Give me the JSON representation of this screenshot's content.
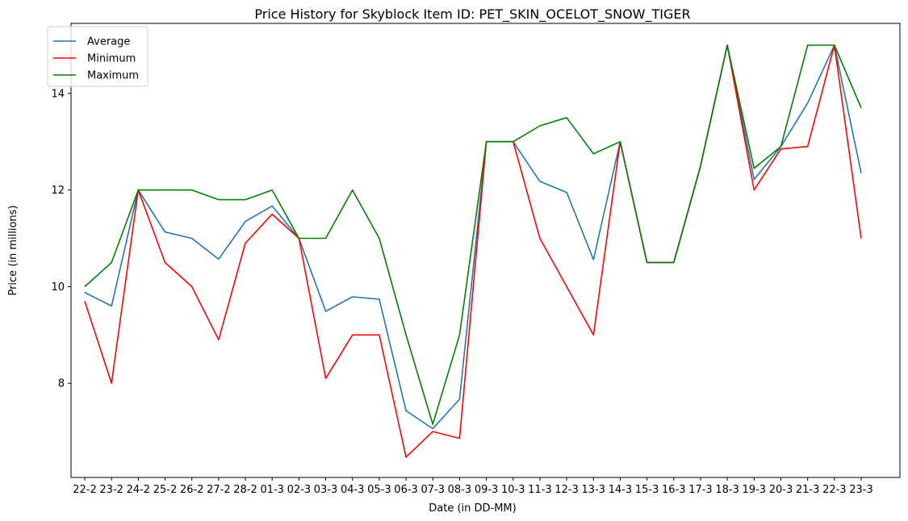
{
  "chart_data": {
    "type": "line",
    "title": "Price History for Skyblock Item ID: PET_SKIN_OCELOT_SNOW_TIGER",
    "xlabel": "Date (in DD-MM)",
    "ylabel": "Price (in millions)",
    "categories": [
      "22-2",
      "23-2",
      "24-2",
      "25-2",
      "26-2",
      "27-2",
      "28-2",
      "01-3",
      "02-3",
      "03-3",
      "04-3",
      "05-3",
      "06-3",
      "07-3",
      "08-3",
      "09-3",
      "10-3",
      "11-3",
      "12-3",
      "13-3",
      "14-3",
      "15-3",
      "16-3",
      "17-3",
      "18-3",
      "19-3",
      "20-3",
      "21-3",
      "22-3",
      "23-3"
    ],
    "ylim": [
      6.05,
      15.45
    ],
    "yticks": [
      8,
      10,
      12,
      14
    ],
    "grid": false,
    "legend_position": "top-left",
    "series": [
      {
        "name": "Average",
        "color": "#1f77b4",
        "values": [
          9.88,
          9.6,
          12.0,
          11.13,
          11.0,
          10.57,
          11.35,
          11.67,
          11.0,
          9.49,
          9.79,
          9.74,
          7.43,
          7.06,
          7.67,
          13.0,
          13.0,
          12.18,
          11.95,
          10.56,
          13.0,
          10.5,
          10.5,
          12.5,
          15.0,
          12.22,
          12.9,
          13.8,
          15.0,
          12.35
        ]
      },
      {
        "name": "Minimum",
        "color": "#ff0000",
        "values": [
          9.7,
          8.0,
          12.0,
          10.5,
          10.0,
          8.9,
          10.9,
          11.5,
          11.0,
          8.1,
          9.0,
          9.0,
          6.47,
          7.0,
          6.86,
          13.0,
          13.0,
          11.0,
          10.0,
          9.0,
          13.0,
          10.5,
          10.5,
          12.5,
          15.0,
          12.0,
          12.85,
          12.9,
          15.0,
          11.0
        ]
      },
      {
        "name": "Maximum",
        "color": "#008000",
        "values": [
          10.0,
          10.5,
          12.0,
          12.0,
          12.0,
          11.8,
          11.8,
          12.0,
          11.0,
          11.0,
          12.0,
          11.0,
          9.0,
          7.15,
          9.0,
          13.0,
          13.0,
          13.33,
          13.5,
          12.75,
          13.0,
          10.5,
          10.5,
          12.5,
          15.0,
          12.45,
          12.9,
          15.0,
          15.0,
          13.7
        ]
      }
    ]
  }
}
